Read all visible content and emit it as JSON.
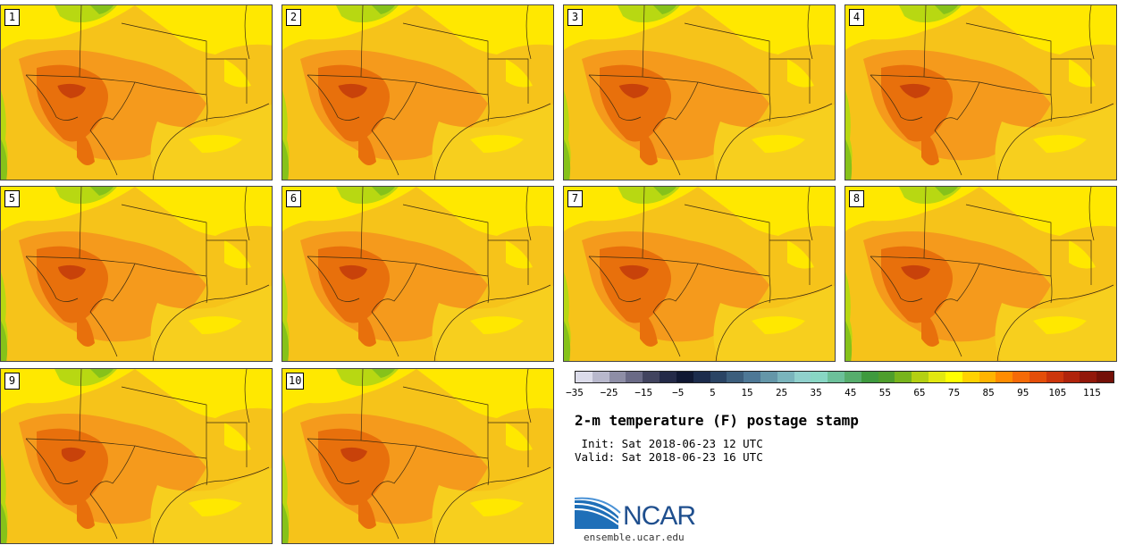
{
  "panels": [
    {
      "label": "1"
    },
    {
      "label": "2"
    },
    {
      "label": "3"
    },
    {
      "label": "4"
    },
    {
      "label": "5"
    },
    {
      "label": "6"
    },
    {
      "label": "7"
    },
    {
      "label": "8"
    },
    {
      "label": "9"
    },
    {
      "label": "10"
    }
  ],
  "colorbar": {
    "colors": [
      "#dcdcea",
      "#b8b8cc",
      "#8e8ea6",
      "#6a6a86",
      "#42445f",
      "#242a48",
      "#101833",
      "#1c2c4c",
      "#2a4464",
      "#3c5e7c",
      "#4e7896",
      "#6496a8",
      "#7ab4bc",
      "#90d0cc",
      "#88d6c4",
      "#6cc09a",
      "#56ad6c",
      "#3e9a3e",
      "#4e9e2c",
      "#78b41c",
      "#b4d012",
      "#e2e810",
      "#ffff00",
      "#ffd200",
      "#ffb400",
      "#ff8c00",
      "#f56a08",
      "#e44e0a",
      "#cc360c",
      "#b0240c",
      "#92180a",
      "#741008"
    ],
    "ticks": [
      "−35",
      "−25",
      "−15",
      "−5",
      "5",
      "15",
      "25",
      "35",
      "45",
      "55",
      "65",
      "75",
      "85",
      "95",
      "105",
      "115"
    ]
  },
  "title": "2-m temperature (F) postage stamp",
  "init_text": " Init: Sat 2018-06-23 12 UTC",
  "valid_text": "Valid: Sat 2018-06-23 16 UTC",
  "logo": {
    "name": "NCAR",
    "url": "ensemble.ucar.edu"
  },
  "map_colors": {
    "base": "#f6c31a",
    "warm": "#f59a1c",
    "hot": "#e8700c",
    "hottest": "#c8420a",
    "cool": "#ffe800",
    "green": "#b8d812",
    "deepgreen": "#86c21a",
    "ocean": "#f7cf1e",
    "border": "#3a2a10"
  }
}
